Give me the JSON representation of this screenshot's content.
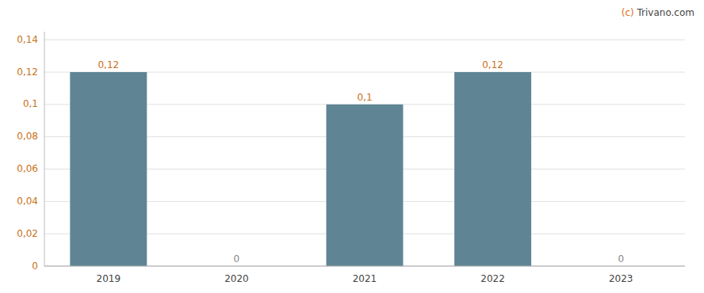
{
  "chart_data": {
    "type": "bar",
    "annotations": [
      "(c) Trivano.com"
    ],
    "categories": [
      "2019",
      "2020",
      "2021",
      "2022",
      "2023"
    ],
    "values": [
      0.12,
      0.0,
      0.1,
      0.12,
      0.0
    ],
    "value_labels": [
      "0,12",
      "0",
      "0,1",
      "0,12",
      "0"
    ],
    "data_labels": true,
    "color": "#5f8595",
    "ylim": [
      0,
      0.145
    ],
    "yticks": [
      0,
      {
        "value": 0.02,
        "label": "0,02"
      },
      {
        "value": 0.04,
        "label": "0,04"
      },
      {
        "value": 0.06,
        "label": "0,06"
      },
      {
        "value": 0.08,
        "label": "0,08"
      },
      {
        "value": 0.1,
        "label": "0,1"
      },
      {
        "value": 0.12,
        "label": "0,12"
      },
      {
        "value": 0.14,
        "label": "0,14"
      }
    ],
    "grid": true
  }
}
